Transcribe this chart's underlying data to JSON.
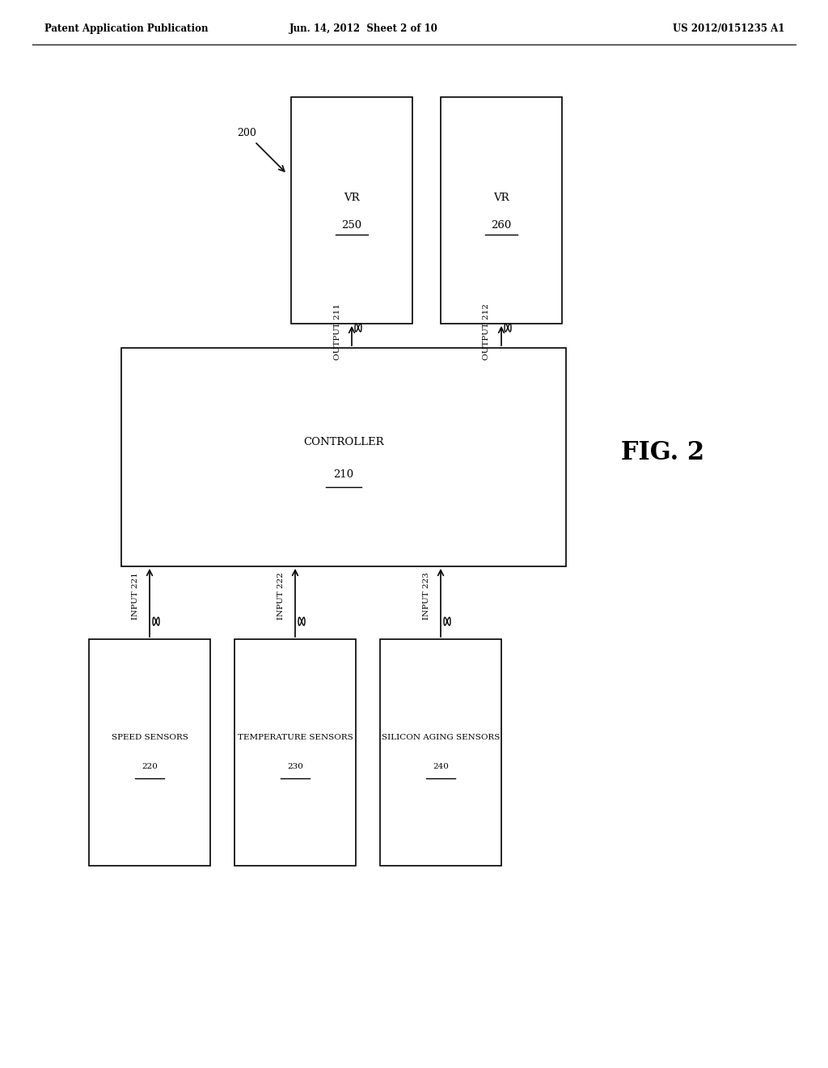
{
  "background_color": "#ffffff",
  "header_left": "Patent Application Publication",
  "header_center": "Jun. 14, 2012  Sheet 2 of 10",
  "header_right": "US 2012/0151235 A1",
  "fig_label": "FIG. 2",
  "diagram_ref": "200",
  "controller_label": "CONTROLLER\n210",
  "vr1_label": "VR\n250",
  "vr2_label": "VR\n260",
  "sensor1_label": "SPEED SENSORS\n220",
  "sensor2_label": "TEMPERATURE SENSORS\n230",
  "sensor3_label": "SILICON AGING SENSORS\n240",
  "output1_label": "OUTPUT 211",
  "output2_label": "OUTPUT 212",
  "input1_label": "INPUT 221",
  "input2_label": "INPUT 222",
  "input3_label": "INPUT 223",
  "text_color": "#000000",
  "box_edge_color": "#000000",
  "box_face_color": "#ffffff"
}
